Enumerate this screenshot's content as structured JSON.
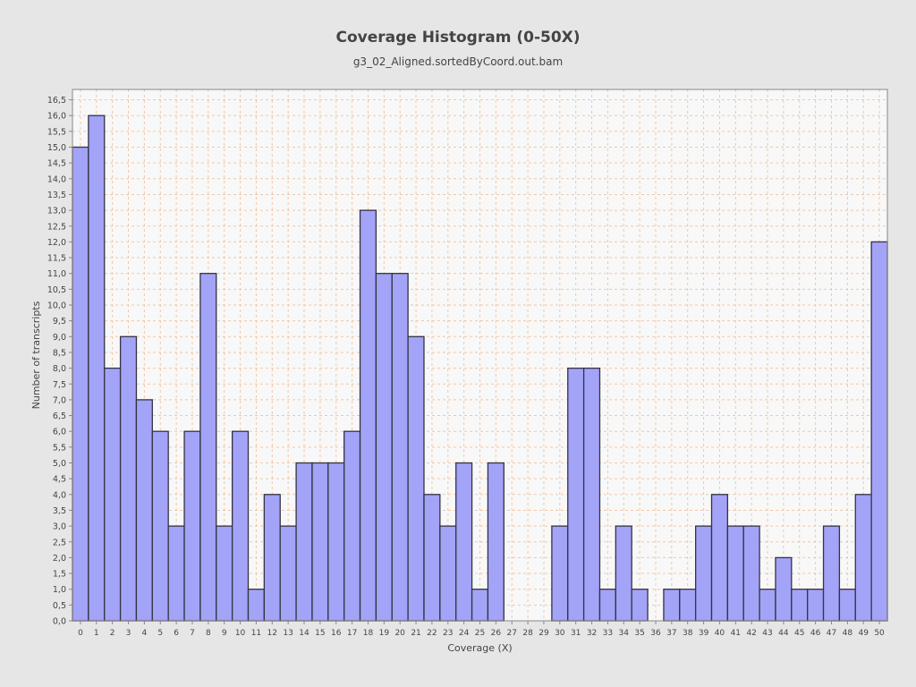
{
  "chart_data": {
    "type": "bar",
    "title": "Coverage Histogram (0-50X)",
    "subtitle": "g3_02_Aligned.sortedByCoord.out.bam",
    "xlabel": "Coverage (X)",
    "ylabel": "Number of transcripts",
    "categories": [
      "0",
      "1",
      "2",
      "3",
      "4",
      "5",
      "6",
      "7",
      "8",
      "9",
      "10",
      "11",
      "12",
      "13",
      "14",
      "15",
      "16",
      "17",
      "18",
      "19",
      "20",
      "21",
      "22",
      "23",
      "24",
      "25",
      "26",
      "27",
      "28",
      "29",
      "30",
      "31",
      "32",
      "33",
      "34",
      "35",
      "36",
      "37",
      "38",
      "39",
      "40",
      "41",
      "42",
      "43",
      "44",
      "45",
      "46",
      "47",
      "48",
      "49",
      "50"
    ],
    "values": [
      15,
      16,
      8,
      9,
      7,
      6,
      3,
      6,
      11,
      3,
      6,
      1,
      4,
      3,
      5,
      5,
      5,
      6,
      13,
      11,
      11,
      9,
      4,
      3,
      5,
      1,
      5,
      0,
      0,
      0,
      3,
      8,
      8,
      1,
      3,
      1,
      0,
      1,
      1,
      3,
      4,
      3,
      3,
      1,
      2,
      1,
      1,
      3,
      1,
      4,
      12
    ],
    "ylim": [
      0,
      16.5
    ],
    "yticks": [
      "0,0",
      "0,5",
      "1,0",
      "1,5",
      "2,0",
      "2,5",
      "3,0",
      "3,5",
      "4,0",
      "4,5",
      "5,0",
      "5,5",
      "6,0",
      "6,5",
      "7,0",
      "7,5",
      "8,0",
      "8,5",
      "9,0",
      "9,5",
      "10,0",
      "10,5",
      "11,0",
      "11,5",
      "12,0",
      "12,5",
      "13,0",
      "13,5",
      "14,0",
      "14,5",
      "15,0",
      "15,5",
      "16,0",
      "16,5"
    ],
    "grid": true,
    "colors": {
      "background": "#e6e6e6",
      "plot_background": "#f8f8f8",
      "bar_fill": "#a3a3f7",
      "bar_stroke": "#333344",
      "grid": "#f0c8a8",
      "axis_text": "#444444"
    }
  }
}
